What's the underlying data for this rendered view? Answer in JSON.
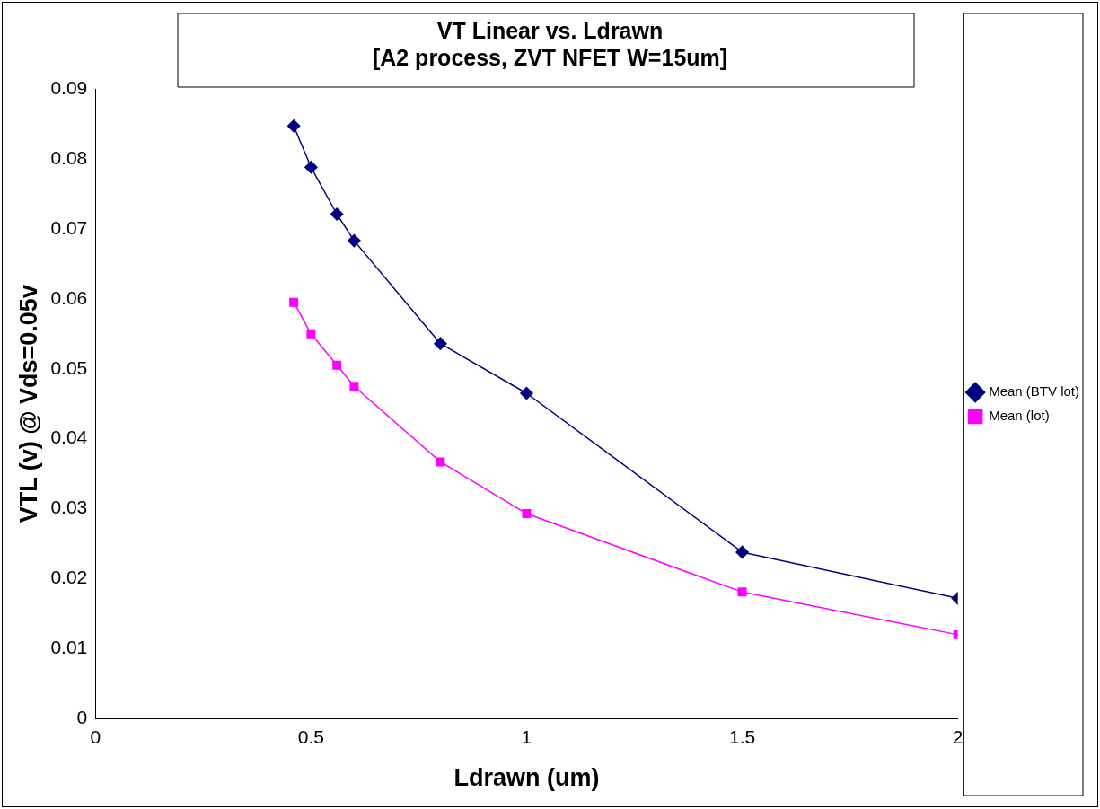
{
  "chart_data": {
    "type": "line",
    "title": [
      "VT Linear vs. Ldrawn",
      "[A2 process, ZVT NFET W=15um]"
    ],
    "xlabel": "Ldrawn (um)",
    "ylabel": "VTL (v) @ Vds=0.05v",
    "x": [
      0.46,
      0.5,
      0.56,
      0.6,
      0.8,
      1,
      1.5,
      2
    ],
    "series": [
      {
        "name": "Mean (BTV lot)",
        "color": "#000080",
        "marker": "diamond",
        "values": [
          0.0847,
          0.0788,
          0.0721,
          0.0683,
          0.0536,
          0.0465,
          0.0238,
          0.0172
        ]
      },
      {
        "name": "Mean (lot)",
        "color": "#ff00ff",
        "marker": "square",
        "values": [
          0.0595,
          0.055,
          0.0505,
          0.0475,
          0.0367,
          0.0293,
          0.0181,
          0.012
        ]
      }
    ],
    "xlim": [
      0,
      2
    ],
    "xticks": [
      0,
      0.5,
      1,
      1.5,
      2
    ],
    "ylim": [
      0,
      0.09
    ],
    "yticks": [
      0,
      0.01,
      0.02,
      0.03,
      0.04,
      0.05,
      0.06,
      0.07,
      0.08,
      0.09
    ],
    "grid": false,
    "legend": "right",
    "line_style": "solid"
  }
}
